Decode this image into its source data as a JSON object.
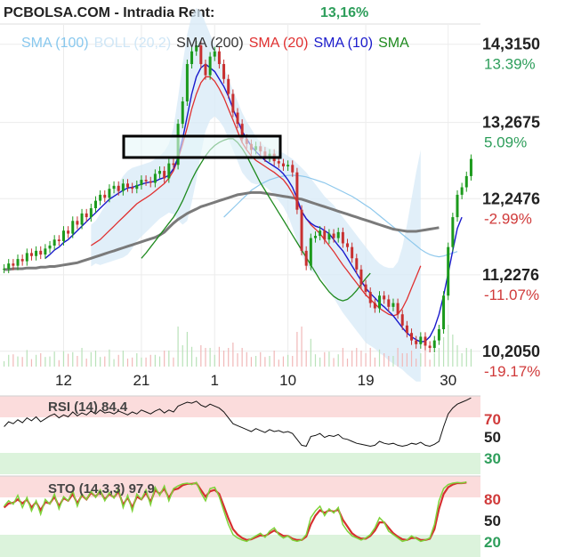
{
  "header": {
    "title": "PCBOLSA.COM - Intradia  Rent:",
    "rent_value": "13,16%",
    "rent_color": "#2e9e5b"
  },
  "price_panel": {
    "legend": [
      {
        "label": "SMA (100)",
        "color": "#88c8ee"
      },
      {
        "label": "BOLL (20,2)",
        "color": "#cfe6f6"
      },
      {
        "label": "SMA (200)",
        "color": "#333333"
      },
      {
        "label": "SMA (20)",
        "color": "#e03030"
      },
      {
        "label": "SMA (10)",
        "color": "#1a1acc"
      },
      {
        "label": "SMA",
        "color": "#1e8a1e"
      }
    ],
    "axis_labels": [
      {
        "price": "14,3150",
        "pct": "13.39%",
        "pct_color": "#2e9e5b"
      },
      {
        "price": "13,2675",
        "pct": "5.09%",
        "pct_color": "#2e9e5b"
      },
      {
        "price": "12,2476",
        "pct": "-2.99%",
        "pct_color": "#d03a3a"
      },
      {
        "price": "11,2276",
        "pct": "-11.07%",
        "pct_color": "#d03a3a"
      },
      {
        "price": "10,2050",
        "pct": "-19.17%",
        "pct_color": "#d03a3a"
      }
    ],
    "date_ticks": [
      "12",
      "21",
      "1",
      "10",
      "19",
      "30"
    ]
  },
  "rsi_panel": {
    "label": "RSI (14) 84.4",
    "levels": [
      "70",
      "50",
      "30"
    ],
    "level_colors": [
      "#d03a3a",
      "#222222",
      "#2e9e5b"
    ]
  },
  "sto_panel": {
    "label": "STO (14,3,3) 97.9",
    "levels": [
      "80",
      "50",
      "20"
    ],
    "level_colors": [
      "#d03a3a",
      "#222222",
      "#2e9e5b"
    ]
  },
  "chart_data": {
    "type": "candlestick",
    "price_ylim": [
      10.0,
      14.55
    ],
    "x_ticks": [
      {
        "label": "12",
        "index": 13
      },
      {
        "label": "21",
        "index": 30
      },
      {
        "label": "1",
        "index": 46
      },
      {
        "label": "10",
        "index": 62
      },
      {
        "label": "19",
        "index": 79
      },
      {
        "label": "30",
        "index": 97
      }
    ],
    "close": [
      11.31,
      11.38,
      11.35,
      11.44,
      11.41,
      11.52,
      11.48,
      11.55,
      11.5,
      11.58,
      11.62,
      11.7,
      11.68,
      11.82,
      11.78,
      11.95,
      11.9,
      12.05,
      12.0,
      12.12,
      12.22,
      12.3,
      12.26,
      12.38,
      12.42,
      12.35,
      12.45,
      12.4,
      12.38,
      12.43,
      12.5,
      12.48,
      12.46,
      12.58,
      12.62,
      12.52,
      12.72,
      12.7,
      13.25,
      13.55,
      14.05,
      14.22,
      14.3,
      14.05,
      13.9,
      14.15,
      14.22,
      14.05,
      13.85,
      13.65,
      13.4,
      13.25,
      13.05,
      12.98,
      12.9,
      12.95,
      12.88,
      12.8,
      12.85,
      12.75,
      12.72,
      12.68,
      12.7,
      12.6,
      12.1,
      11.55,
      11.35,
      11.72,
      11.75,
      11.82,
      11.7,
      11.78,
      11.72,
      11.8,
      11.65,
      11.6,
      11.45,
      11.3,
      11.1,
      11.0,
      10.85,
      10.78,
      10.95,
      10.9,
      10.8,
      10.85,
      10.7,
      10.55,
      10.45,
      10.35,
      10.3,
      10.4,
      10.28,
      10.25,
      10.35,
      10.5,
      10.95,
      11.6,
      12.0,
      12.3,
      12.4,
      12.55,
      12.78
    ],
    "sma10": [
      null,
      null,
      null,
      null,
      null,
      null,
      null,
      null,
      null,
      11.45,
      11.5,
      11.56,
      11.6,
      11.66,
      11.7,
      11.76,
      11.82,
      11.88,
      11.94,
      12.0,
      12.06,
      12.12,
      12.18,
      12.24,
      12.28,
      12.32,
      12.36,
      12.39,
      12.4,
      12.42,
      12.44,
      12.46,
      12.47,
      12.48,
      12.51,
      12.53,
      12.56,
      12.65,
      12.8,
      13.05,
      13.35,
      13.65,
      13.88,
      14.0,
      14.05,
      14.0,
      13.95,
      13.85,
      13.75,
      13.62,
      13.45,
      13.3,
      13.15,
      13.05,
      12.95,
      12.88,
      12.82,
      12.76,
      12.72,
      12.68,
      12.64,
      12.58,
      12.5,
      12.4,
      12.25,
      12.08,
      11.98,
      11.92,
      11.88,
      11.86,
      11.82,
      11.78,
      11.7,
      11.62,
      11.55,
      11.45,
      11.35,
      11.25,
      11.15,
      11.05,
      10.98,
      10.92,
      10.85,
      10.8,
      10.74,
      10.68,
      10.6,
      10.52,
      10.45,
      10.4,
      10.36,
      10.33,
      10.34,
      10.4,
      10.52,
      10.7,
      10.95,
      11.25,
      11.55,
      11.85,
      12.0
    ],
    "sma20": [
      null,
      null,
      null,
      null,
      null,
      null,
      null,
      null,
      null,
      null,
      null,
      null,
      null,
      null,
      null,
      null,
      null,
      null,
      null,
      11.62,
      11.66,
      11.7,
      11.76,
      11.82,
      11.88,
      11.94,
      12.0,
      12.06,
      12.12,
      12.18,
      12.22,
      12.26,
      12.3,
      12.35,
      12.4,
      12.45,
      12.52,
      12.62,
      12.78,
      12.98,
      13.2,
      13.45,
      13.65,
      13.8,
      13.88,
      13.88,
      13.82,
      13.72,
      13.6,
      13.45,
      13.3,
      13.15,
      13.0,
      12.9,
      12.82,
      12.76,
      12.72,
      12.68,
      12.64,
      12.6,
      12.55,
      12.5,
      12.42,
      12.32,
      12.2,
      12.08,
      11.98,
      11.9,
      11.84,
      11.78,
      11.7,
      11.62,
      11.54,
      11.45,
      11.36,
      11.28,
      11.2,
      11.12,
      11.04,
      10.96,
      10.9,
      10.84,
      10.78,
      10.74,
      10.7,
      10.68,
      10.7,
      10.78,
      10.9,
      11.05,
      11.2,
      11.35
    ],
    "sma_green": [
      null,
      null,
      null,
      null,
      null,
      null,
      null,
      null,
      null,
      null,
      null,
      null,
      null,
      null,
      null,
      null,
      null,
      null,
      null,
      null,
      null,
      null,
      null,
      null,
      null,
      null,
      null,
      null,
      null,
      null,
      11.45,
      11.52,
      11.6,
      11.68,
      11.76,
      11.84,
      11.92,
      12.0,
      12.1,
      12.22,
      12.36,
      12.5,
      12.62,
      12.72,
      12.82,
      12.9,
      12.96,
      13.0,
      13.03,
      13.05,
      13.05,
      13.0,
      12.92,
      12.82,
      12.7,
      12.58,
      12.46,
      12.36,
      12.26,
      12.16,
      12.06,
      11.96,
      11.86,
      11.76,
      11.66,
      11.56,
      11.46,
      11.36,
      11.26,
      11.16,
      11.08,
      11.0,
      10.94,
      10.9,
      10.88,
      10.9,
      10.95,
      11.02,
      11.1,
      11.18,
      11.25
    ],
    "sma100": [
      null,
      null,
      null,
      null,
      null,
      null,
      null,
      null,
      null,
      null,
      null,
      null,
      null,
      null,
      null,
      null,
      null,
      null,
      null,
      null,
      null,
      null,
      null,
      null,
      null,
      null,
      null,
      null,
      null,
      null,
      null,
      null,
      null,
      null,
      null,
      null,
      null,
      null,
      null,
      null,
      null,
      null,
      null,
      null,
      null,
      null,
      null,
      null,
      12.0,
      12.06,
      12.12,
      12.18,
      12.24,
      12.3,
      12.36,
      12.4,
      12.44,
      12.47,
      12.5,
      12.52,
      12.54,
      12.55,
      12.56,
      12.56,
      12.56,
      12.55,
      12.54,
      12.52,
      12.5,
      12.48,
      12.46,
      12.43,
      12.4,
      12.37,
      12.34,
      12.31,
      12.28,
      12.24,
      12.2,
      12.16,
      12.12,
      12.07,
      12.02,
      11.97,
      11.92,
      11.87,
      11.82,
      11.77,
      11.72,
      11.67,
      11.62,
      11.57,
      11.53,
      11.5,
      11.48,
      11.47,
      11.48,
      11.5,
      11.52,
      11.54
    ],
    "sma200": [
      11.3,
      11.3,
      11.31,
      11.31,
      11.31,
      11.32,
      11.32,
      11.32,
      11.33,
      11.33,
      11.34,
      11.34,
      11.35,
      11.36,
      11.37,
      11.38,
      11.39,
      11.41,
      11.43,
      11.45,
      11.47,
      11.49,
      11.51,
      11.53,
      11.55,
      11.57,
      11.59,
      11.61,
      11.63,
      11.65,
      11.67,
      11.69,
      11.71,
      11.73,
      11.76,
      11.8,
      11.86,
      11.92,
      11.97,
      12.01,
      12.05,
      12.08,
      12.11,
      12.14,
      12.16,
      12.18,
      12.2,
      12.22,
      12.24,
      12.26,
      12.28,
      12.3,
      12.31,
      12.32,
      12.33,
      12.33,
      12.33,
      12.32,
      12.31,
      12.3,
      12.29,
      12.28,
      12.27,
      12.26,
      12.25,
      12.24,
      12.22,
      12.2,
      12.18,
      12.16,
      12.14,
      12.12,
      12.1,
      12.08,
      12.06,
      12.04,
      12.02,
      12.0,
      11.98,
      11.96,
      11.94,
      11.92,
      11.9,
      11.88,
      11.86,
      11.84,
      11.83,
      11.82,
      11.81,
      11.81,
      11.81,
      11.82,
      11.83,
      11.84,
      11.85,
      11.86
    ],
    "boll_upper": [
      null,
      null,
      null,
      null,
      null,
      null,
      null,
      null,
      null,
      null,
      null,
      null,
      null,
      null,
      null,
      null,
      null,
      null,
      null,
      11.9,
      11.95,
      12.05,
      12.15,
      12.25,
      12.35,
      12.45,
      12.55,
      12.62,
      12.66,
      12.68,
      12.7,
      12.72,
      12.74,
      12.78,
      12.82,
      12.88,
      12.98,
      13.2,
      13.6,
      14.05,
      14.45,
      14.7,
      14.8,
      14.75,
      14.6,
      14.45,
      14.3,
      14.15,
      14.0,
      13.85,
      13.7,
      13.55,
      13.4,
      13.28,
      13.18,
      13.08,
      13.0,
      12.95,
      12.92,
      12.9,
      12.88,
      12.86,
      12.82,
      12.78,
      12.72,
      12.66,
      12.6,
      12.52,
      12.44,
      12.36,
      12.28,
      12.22,
      12.16,
      12.08,
      12.0,
      11.92,
      11.84,
      11.76,
      11.68,
      11.6,
      11.52,
      11.44,
      11.38,
      11.34,
      11.32,
      11.32,
      11.4,
      11.6,
      11.9,
      12.25,
      12.6,
      12.9
    ],
    "boll_lower": [
      null,
      null,
      null,
      null,
      null,
      null,
      null,
      null,
      null,
      null,
      null,
      null,
      null,
      null,
      null,
      null,
      null,
      null,
      null,
      11.34,
      11.38,
      11.36,
      11.38,
      11.4,
      11.42,
      11.44,
      11.46,
      11.5,
      11.58,
      11.68,
      11.74,
      11.8,
      11.86,
      11.92,
      11.98,
      12.02,
      12.06,
      12.04,
      11.96,
      11.9,
      11.95,
      12.2,
      12.5,
      12.85,
      13.15,
      13.3,
      13.35,
      13.29,
      13.2,
      13.05,
      12.9,
      12.75,
      12.6,
      12.52,
      12.46,
      12.44,
      12.44,
      12.41,
      12.36,
      12.3,
      12.22,
      12.14,
      12.02,
      11.86,
      11.68,
      11.5,
      11.36,
      11.28,
      11.24,
      11.2,
      11.12,
      11.02,
      10.92,
      10.82,
      10.72,
      10.64,
      10.56,
      10.48,
      10.4,
      10.32,
      10.28,
      10.24,
      10.18,
      10.14,
      10.08,
      10.04,
      10.0,
      9.96,
      9.9,
      9.85,
      9.8,
      9.8
    ],
    "rsi": [
      55,
      60,
      58,
      62,
      59,
      64,
      61,
      65,
      60,
      63,
      66,
      68,
      64,
      67,
      65,
      70,
      66,
      69,
      67,
      71,
      68,
      72,
      69,
      70,
      68,
      71,
      69,
      67,
      70,
      68,
      72,
      70,
      68,
      71,
      73,
      69,
      72,
      70,
      76,
      78,
      80,
      79,
      81,
      77,
      75,
      78,
      76,
      74,
      70,
      64,
      58,
      56,
      54,
      52,
      50,
      53,
      51,
      49,
      52,
      50,
      51,
      49,
      50,
      48,
      42,
      36,
      35,
      45,
      46,
      48,
      44,
      46,
      45,
      47,
      43,
      42,
      40,
      38,
      37,
      36,
      35,
      36,
      40,
      38,
      37,
      38,
      36,
      35,
      36,
      38,
      37,
      39,
      36,
      35,
      37,
      40,
      55,
      68,
      74,
      78,
      80,
      82,
      84.4
    ],
    "sto_k": [
      62,
      70,
      65,
      78,
      60,
      75,
      55,
      70,
      50,
      72,
      65,
      80,
      58,
      76,
      70,
      85,
      62,
      80,
      72,
      84,
      75,
      86,
      70,
      82,
      74,
      88,
      60,
      78,
      55,
      80,
      72,
      86,
      64,
      90,
      78,
      92,
      70,
      88,
      92,
      95,
      96,
      94,
      97,
      82,
      70,
      88,
      90,
      76,
      55,
      35,
      20,
      15,
      12,
      10,
      14,
      18,
      22,
      16,
      25,
      30,
      20,
      15,
      18,
      12,
      10,
      12,
      20,
      45,
      55,
      62,
      48,
      58,
      52,
      60,
      35,
      25,
      18,
      15,
      12,
      15,
      20,
      30,
      45,
      38,
      25,
      20,
      15,
      10,
      12,
      18,
      14,
      10,
      12,
      15,
      35,
      70,
      88,
      94,
      96,
      97,
      96,
      97.9
    ],
    "sto_d": [
      60,
      66,
      67,
      72,
      66,
      72,
      60,
      68,
      56,
      68,
      66,
      76,
      62,
      74,
      70,
      80,
      66,
      78,
      72,
      82,
      76,
      84,
      72,
      80,
      75,
      84,
      64,
      75,
      60,
      76,
      72,
      82,
      68,
      86,
      80,
      88,
      74,
      86,
      88,
      93,
      95,
      95,
      96,
      86,
      76,
      84,
      86,
      80,
      62,
      44,
      28,
      20,
      15,
      12,
      13,
      16,
      19,
      18,
      22,
      26,
      22,
      18,
      18,
      14,
      12,
      12,
      17,
      35,
      48,
      56,
      52,
      56,
      54,
      57,
      42,
      32,
      22,
      17,
      14,
      14,
      18,
      26,
      38,
      38,
      30,
      22,
      17,
      13,
      12,
      15,
      15,
      12,
      12,
      14,
      28,
      58,
      80,
      90,
      94,
      96,
      96,
      97
    ]
  }
}
